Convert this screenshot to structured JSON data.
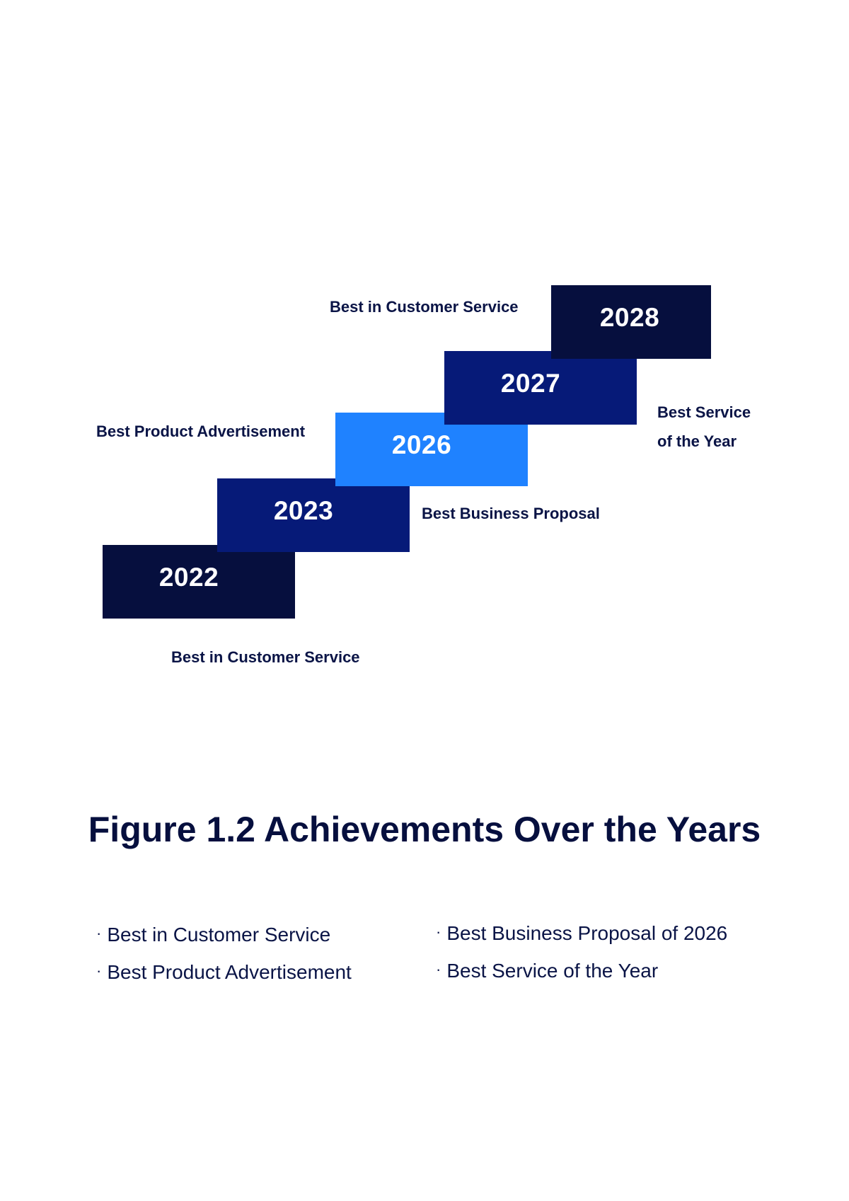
{
  "steps": [
    {
      "year": "2022",
      "color": "#060f3e"
    },
    {
      "year": "2023",
      "color": "#061a78"
    },
    {
      "year": "2026",
      "color": "#1f82ff"
    },
    {
      "year": "2027",
      "color": "#061a78"
    },
    {
      "year": "2028",
      "color": "#060f3e"
    }
  ],
  "labels": {
    "top": "Best in Customer Service",
    "left": "Best Product Advertisement",
    "right": "Best Service\nof the Year",
    "mid": "Best Business Proposal",
    "bottom": "Best in Customer Service"
  },
  "figure_title": "Figure 1.2 Achievements Over the Years",
  "bullet_symbol": "·",
  "legend": {
    "left": [
      "Best in Customer Service",
      "Best Product Advertisement"
    ],
    "right": [
      "Best Business Proposal of 2026",
      "Best Service of the Year"
    ]
  },
  "colors": {
    "dark_navy": "#060f3e",
    "royal_blue": "#061a78",
    "bright_blue": "#1f82ff",
    "text": "#0a1446"
  }
}
